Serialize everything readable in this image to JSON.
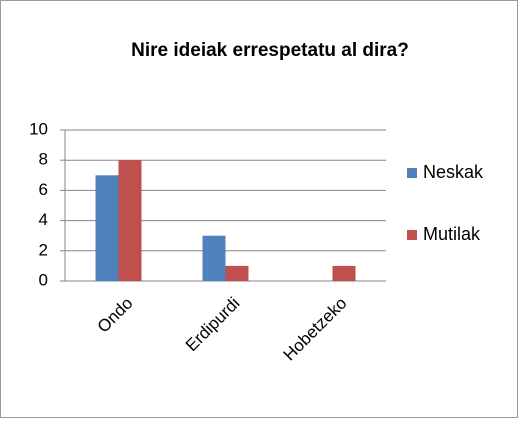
{
  "chart_data": {
    "type": "bar",
    "title": "Nire ideiak errespetatu al dira?",
    "categories": [
      "Ondo",
      "Erdipurdi",
      "Hobetzeko"
    ],
    "series": [
      {
        "name": "Neskak",
        "color": "#4f81bd",
        "values": [
          7,
          3,
          0
        ]
      },
      {
        "name": "Mutilak",
        "color": "#c0504d",
        "values": [
          8,
          1,
          1
        ]
      }
    ],
    "ylim": [
      0,
      10
    ],
    "yticks": [
      0,
      2,
      4,
      6,
      8,
      10
    ],
    "grid": true,
    "legend": "right"
  }
}
